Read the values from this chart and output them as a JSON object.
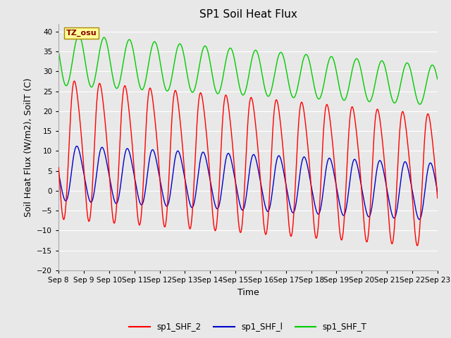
{
  "title": "SP1 Soil Heat Flux",
  "xlabel": "Time",
  "ylabel": "Soil Heat Flux (W/m2), SoilT (C)",
  "ylim": [
    -20,
    42
  ],
  "yticks": [
    -20,
    -15,
    -10,
    -5,
    0,
    5,
    10,
    15,
    20,
    25,
    30,
    35,
    40
  ],
  "n_days": 15,
  "line_color_shf2": "#ff0000",
  "line_color_shf1": "#0000cc",
  "line_color_shfT": "#00cc00",
  "legend_labels": [
    "sp1_SHF_2",
    "sp1_SHF_l",
    "sp1_SHF_T"
  ],
  "tz_label": "TZ_osu",
  "tz_box_color": "#ffff99",
  "tz_text_color": "#880000",
  "title_fontsize": 11,
  "label_fontsize": 9,
  "tick_fontsize": 7.5,
  "legend_fontsize": 8.5,
  "bg_color": "#e8e8e8",
  "plot_bg_color": "#e8e8e8",
  "grid_color": "#ffffff"
}
